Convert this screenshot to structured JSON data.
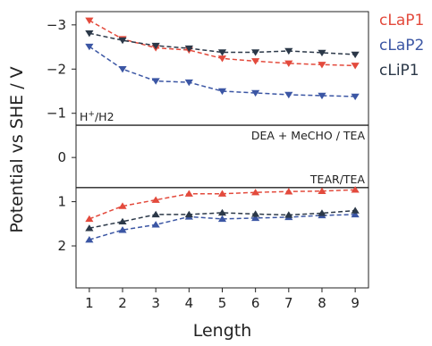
{
  "chart_data": {
    "type": "line",
    "xlabel": "Length",
    "ylabel": "Potential vs SHE / V",
    "xlim": [
      0.6,
      9.4
    ],
    "ylim": [
      -3.3,
      2.95
    ],
    "y_axis_inverted": true,
    "x_ticks": [
      1,
      2,
      3,
      4,
      5,
      6,
      7,
      8,
      9
    ],
    "y_ticks": [
      -3,
      -2,
      -1,
      0,
      1,
      2
    ],
    "y_tick_labels": [
      "−3",
      "−2",
      "−1",
      "0",
      "1",
      "2"
    ],
    "grid": false,
    "legend_position": "outside-right",
    "x": [
      1,
      2,
      3,
      4,
      5,
      6,
      7,
      8,
      9
    ],
    "reference_lines": [
      {
        "y": -0.73,
        "label": "H⁺/H2",
        "label_position": "above-left"
      },
      {
        "y": 0.68,
        "label": "TEAR/TEA",
        "label_position": "above-right"
      }
    ],
    "region_label": {
      "text": "DEA + MeCHO / TEA",
      "position": "below upper line, right"
    },
    "series": [
      {
        "name": "cLaP1",
        "color": "#e34a3c",
        "marker": "triangle-down",
        "group": "upper",
        "values": [
          -3.1,
          -2.68,
          -2.48,
          -2.43,
          -2.24,
          -2.18,
          -2.13,
          -2.1,
          -2.08
        ]
      },
      {
        "name": "cLaP2",
        "color": "#3b56a4",
        "marker": "triangle-down",
        "group": "upper",
        "values": [
          -2.51,
          -2.0,
          -1.73,
          -1.7,
          -1.5,
          -1.46,
          -1.42,
          -1.4,
          -1.38
        ]
      },
      {
        "name": "cLiP1",
        "color": "#2b3848",
        "marker": "triangle-down",
        "group": "upper",
        "values": [
          -2.81,
          -2.65,
          -2.53,
          -2.47,
          -2.38,
          -2.38,
          -2.41,
          -2.37,
          -2.33
        ]
      },
      {
        "name": "cLaP1",
        "color": "#e34a3c",
        "marker": "triangle-up",
        "group": "lower",
        "values": [
          1.39,
          1.1,
          0.96,
          0.82,
          0.82,
          0.79,
          0.77,
          0.76,
          0.73
        ]
      },
      {
        "name": "cLaP2",
        "color": "#3b56a4",
        "marker": "triangle-up",
        "group": "lower",
        "values": [
          1.86,
          1.64,
          1.52,
          1.34,
          1.39,
          1.37,
          1.35,
          1.31,
          1.29
        ]
      },
      {
        "name": "cLiP1",
        "color": "#2b3848",
        "marker": "triangle-up",
        "group": "lower",
        "values": [
          1.6,
          1.45,
          1.29,
          1.29,
          1.25,
          1.28,
          1.3,
          1.26,
          1.2
        ]
      }
    ],
    "legend": [
      {
        "label": "cLaP1",
        "color": "#e34a3c"
      },
      {
        "label": "cLaP2",
        "color": "#3b56a4"
      },
      {
        "label": "cLiP1",
        "color": "#2b3848"
      }
    ]
  }
}
